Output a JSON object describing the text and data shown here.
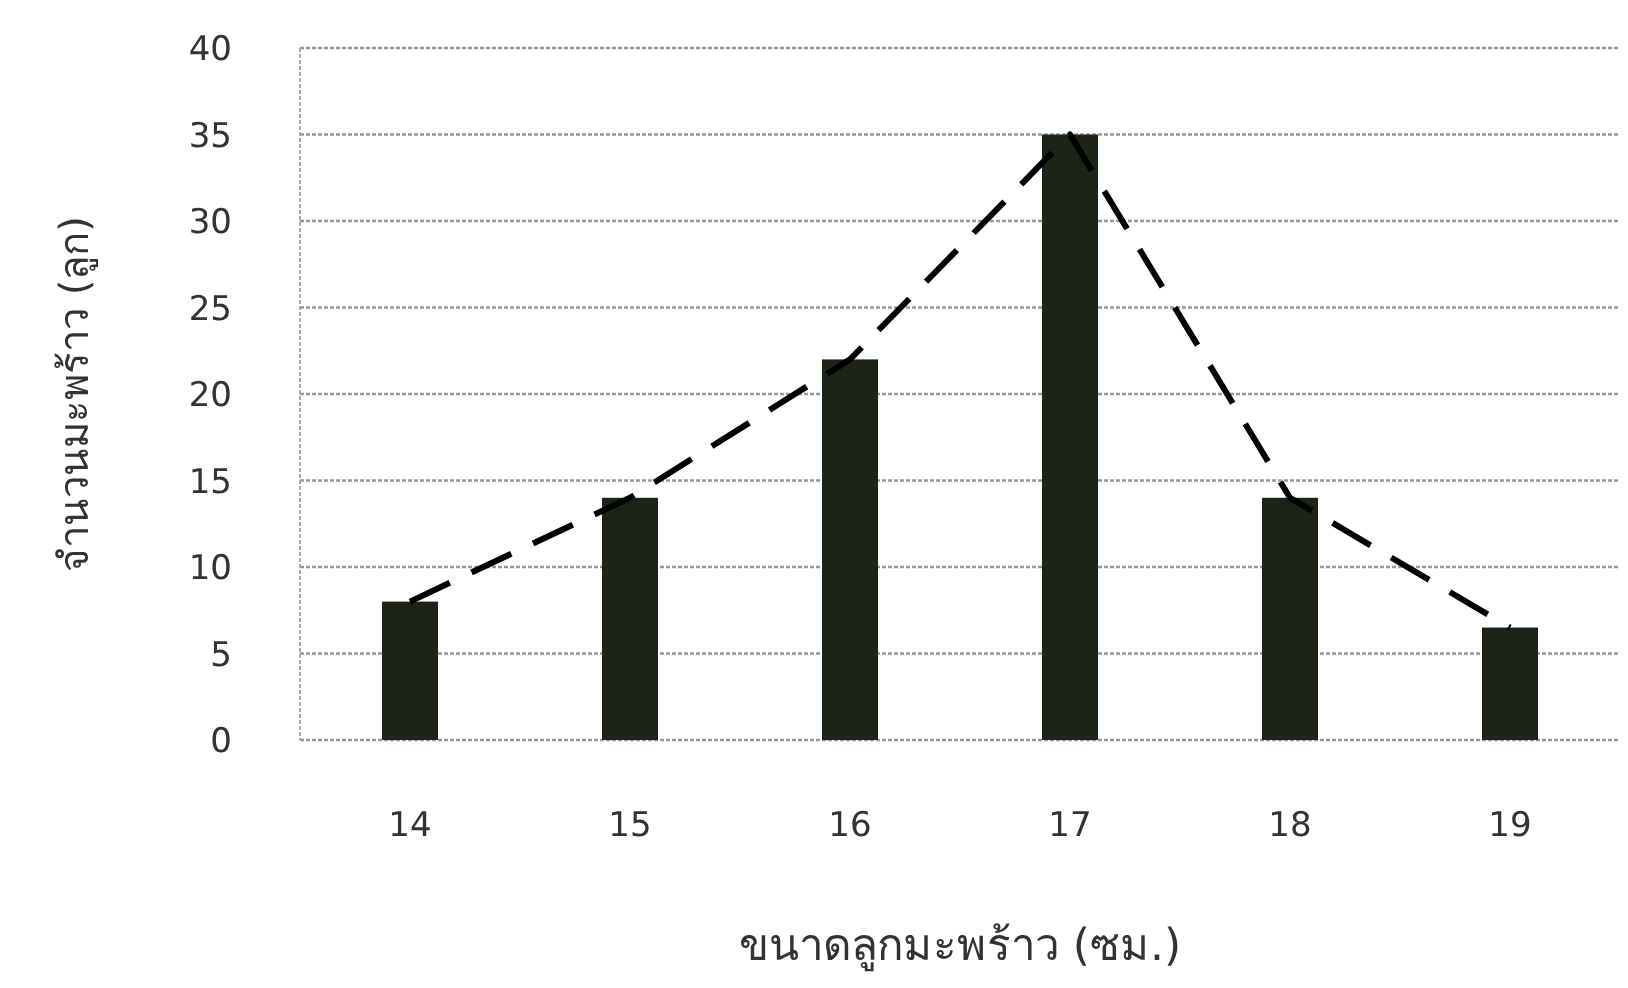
{
  "chart_data": {
    "type": "bar",
    "xlabel": "ขนาดลูกมะพร้าว (ซม.)",
    "ylabel": "จำนวนมะพร้าว (ลูก)",
    "categories": [
      "14",
      "15",
      "16",
      "17",
      "18",
      "19"
    ],
    "series": [
      {
        "color": "#1c2418",
        "values": [
          8,
          14,
          22,
          35,
          14,
          6.5
        ]
      },
      {
        "type": "line",
        "color": "#000000",
        "line_style": "dashed",
        "values": [
          8,
          14,
          22,
          35,
          14,
          6.5
        ]
      }
    ],
    "ylim": [
      0,
      40
    ],
    "yticks": [
      0,
      5,
      10,
      15,
      20,
      25,
      30,
      35,
      40
    ],
    "grid": "y"
  }
}
